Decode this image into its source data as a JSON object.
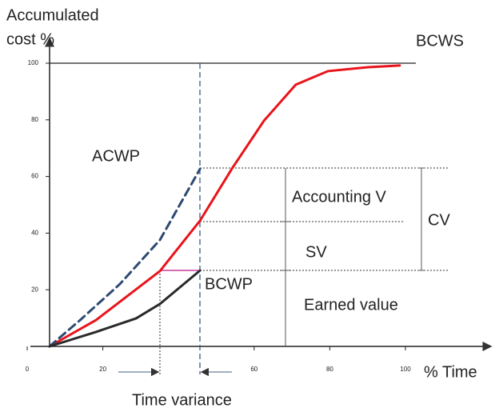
{
  "chart_data": {
    "type": "line",
    "y_label": [
      "Accumulated",
      "cost %"
    ],
    "x_label": "% Time",
    "xlim": [
      0,
      100
    ],
    "ylim": [
      0,
      100
    ],
    "xticks": [
      0,
      20,
      60,
      80,
      100
    ],
    "yticks": [
      20,
      40,
      60,
      80,
      100
    ],
    "series": [
      {
        "name": "BCWS",
        "color": "#e8141b",
        "dashed": false,
        "x": [
          5.9,
          18.2,
          35.1,
          45.7,
          54.1,
          62.6,
          71.0,
          79.5,
          90.1,
          98.5
        ],
        "values": [
          0,
          9.3,
          26.6,
          44.4,
          62.7,
          79.7,
          92.4,
          97.2,
          98.6,
          99.2
        ]
      },
      {
        "name": "ACWP",
        "color": "#2e4a72",
        "dashed": true,
        "x": [
          5.9,
          14.0,
          24.5,
          35.1,
          45.7
        ],
        "values": [
          0,
          9.3,
          22.0,
          37.6,
          62.7
        ]
      },
      {
        "name": "BCWP",
        "color": "#2a2a2a",
        "dashed": false,
        "x": [
          5.9,
          18.2,
          28.8,
          35.1,
          45.7
        ],
        "values": [
          0,
          5.1,
          9.9,
          15.0,
          26.8
        ]
      }
    ],
    "annotations": [
      "Accounting V",
      "CV",
      "SV",
      "Earned value",
      "Time variance"
    ]
  }
}
